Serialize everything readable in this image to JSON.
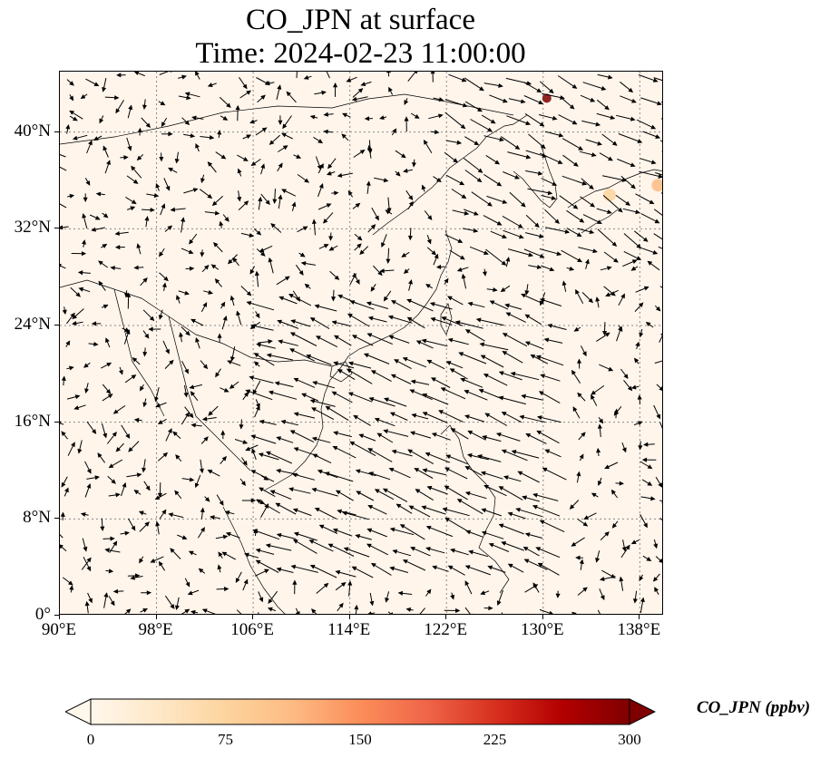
{
  "title": {
    "line1": "CO_JPN at surface",
    "line2": "Time: 2024-02-23 11:00:00"
  },
  "map": {
    "lon_range": [
      90,
      140
    ],
    "lat_range": [
      0,
      45
    ],
    "lat_ticks": [
      {
        "value": 0,
        "label": "0°"
      },
      {
        "value": 8,
        "label": "8°N"
      },
      {
        "value": 16,
        "label": "16°N"
      },
      {
        "value": 24,
        "label": "24°N"
      },
      {
        "value": 32,
        "label": "32°N"
      },
      {
        "value": 40,
        "label": "40°N"
      }
    ],
    "lon_ticks": [
      {
        "value": 90,
        "label": "90°E"
      },
      {
        "value": 98,
        "label": "98°E"
      },
      {
        "value": 106,
        "label": "106°E"
      },
      {
        "value": 114,
        "label": "114°E"
      },
      {
        "value": 122,
        "label": "122°E"
      },
      {
        "value": 130,
        "label": "130°E"
      },
      {
        "value": 138,
        "label": "138°E"
      }
    ],
    "gridlines": "dotted",
    "background_color": "#fff5eb",
    "overlay": "wind vectors (quiver) over CO concentration field",
    "hotspots": [
      {
        "lon": 130.3,
        "lat": 42.8,
        "value": 300
      },
      {
        "lon": 139.5,
        "lat": 35.6,
        "value": 110
      },
      {
        "lon": 135.5,
        "lat": 34.8,
        "value": 60
      }
    ]
  },
  "colorbar": {
    "label": "CO_JPN (ppbv)",
    "min": 0,
    "max": 300,
    "ticks": [
      "0",
      "75",
      "150",
      "225",
      "300"
    ],
    "colormap": "OrRd",
    "extend": "both",
    "colors": [
      "#fff7ec",
      "#fee8c8",
      "#fdd49e",
      "#fdbb84",
      "#fc8d59",
      "#ef6548",
      "#d7301f",
      "#b30000",
      "#7f0000"
    ]
  }
}
